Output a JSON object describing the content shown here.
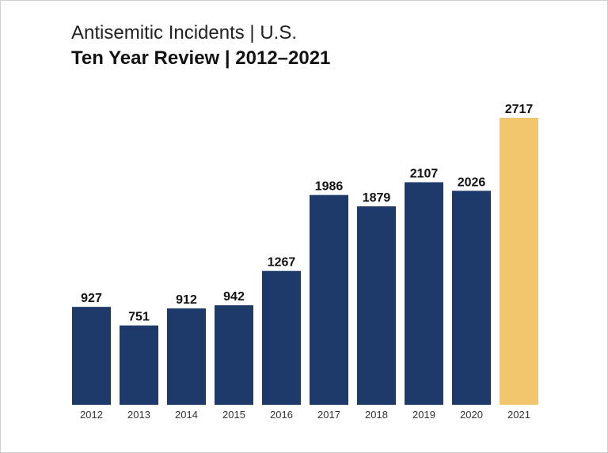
{
  "chart_data": {
    "type": "bar",
    "title": "Antisemitic Incidents | U.S.",
    "subtitle": "Ten Year Review | 2012–2021",
    "categories": [
      "2012",
      "2013",
      "2014",
      "2015",
      "2016",
      "2017",
      "2018",
      "2019",
      "2020",
      "2021"
    ],
    "values": [
      927,
      751,
      912,
      942,
      1267,
      1986,
      1879,
      2107,
      2026,
      2717
    ],
    "ylim": [
      0,
      2717
    ],
    "grid": false,
    "legend": "none",
    "colors": {
      "bar": "#1e3a6b",
      "highlight": "#f2c66d"
    },
    "highlight_category": "2021"
  }
}
